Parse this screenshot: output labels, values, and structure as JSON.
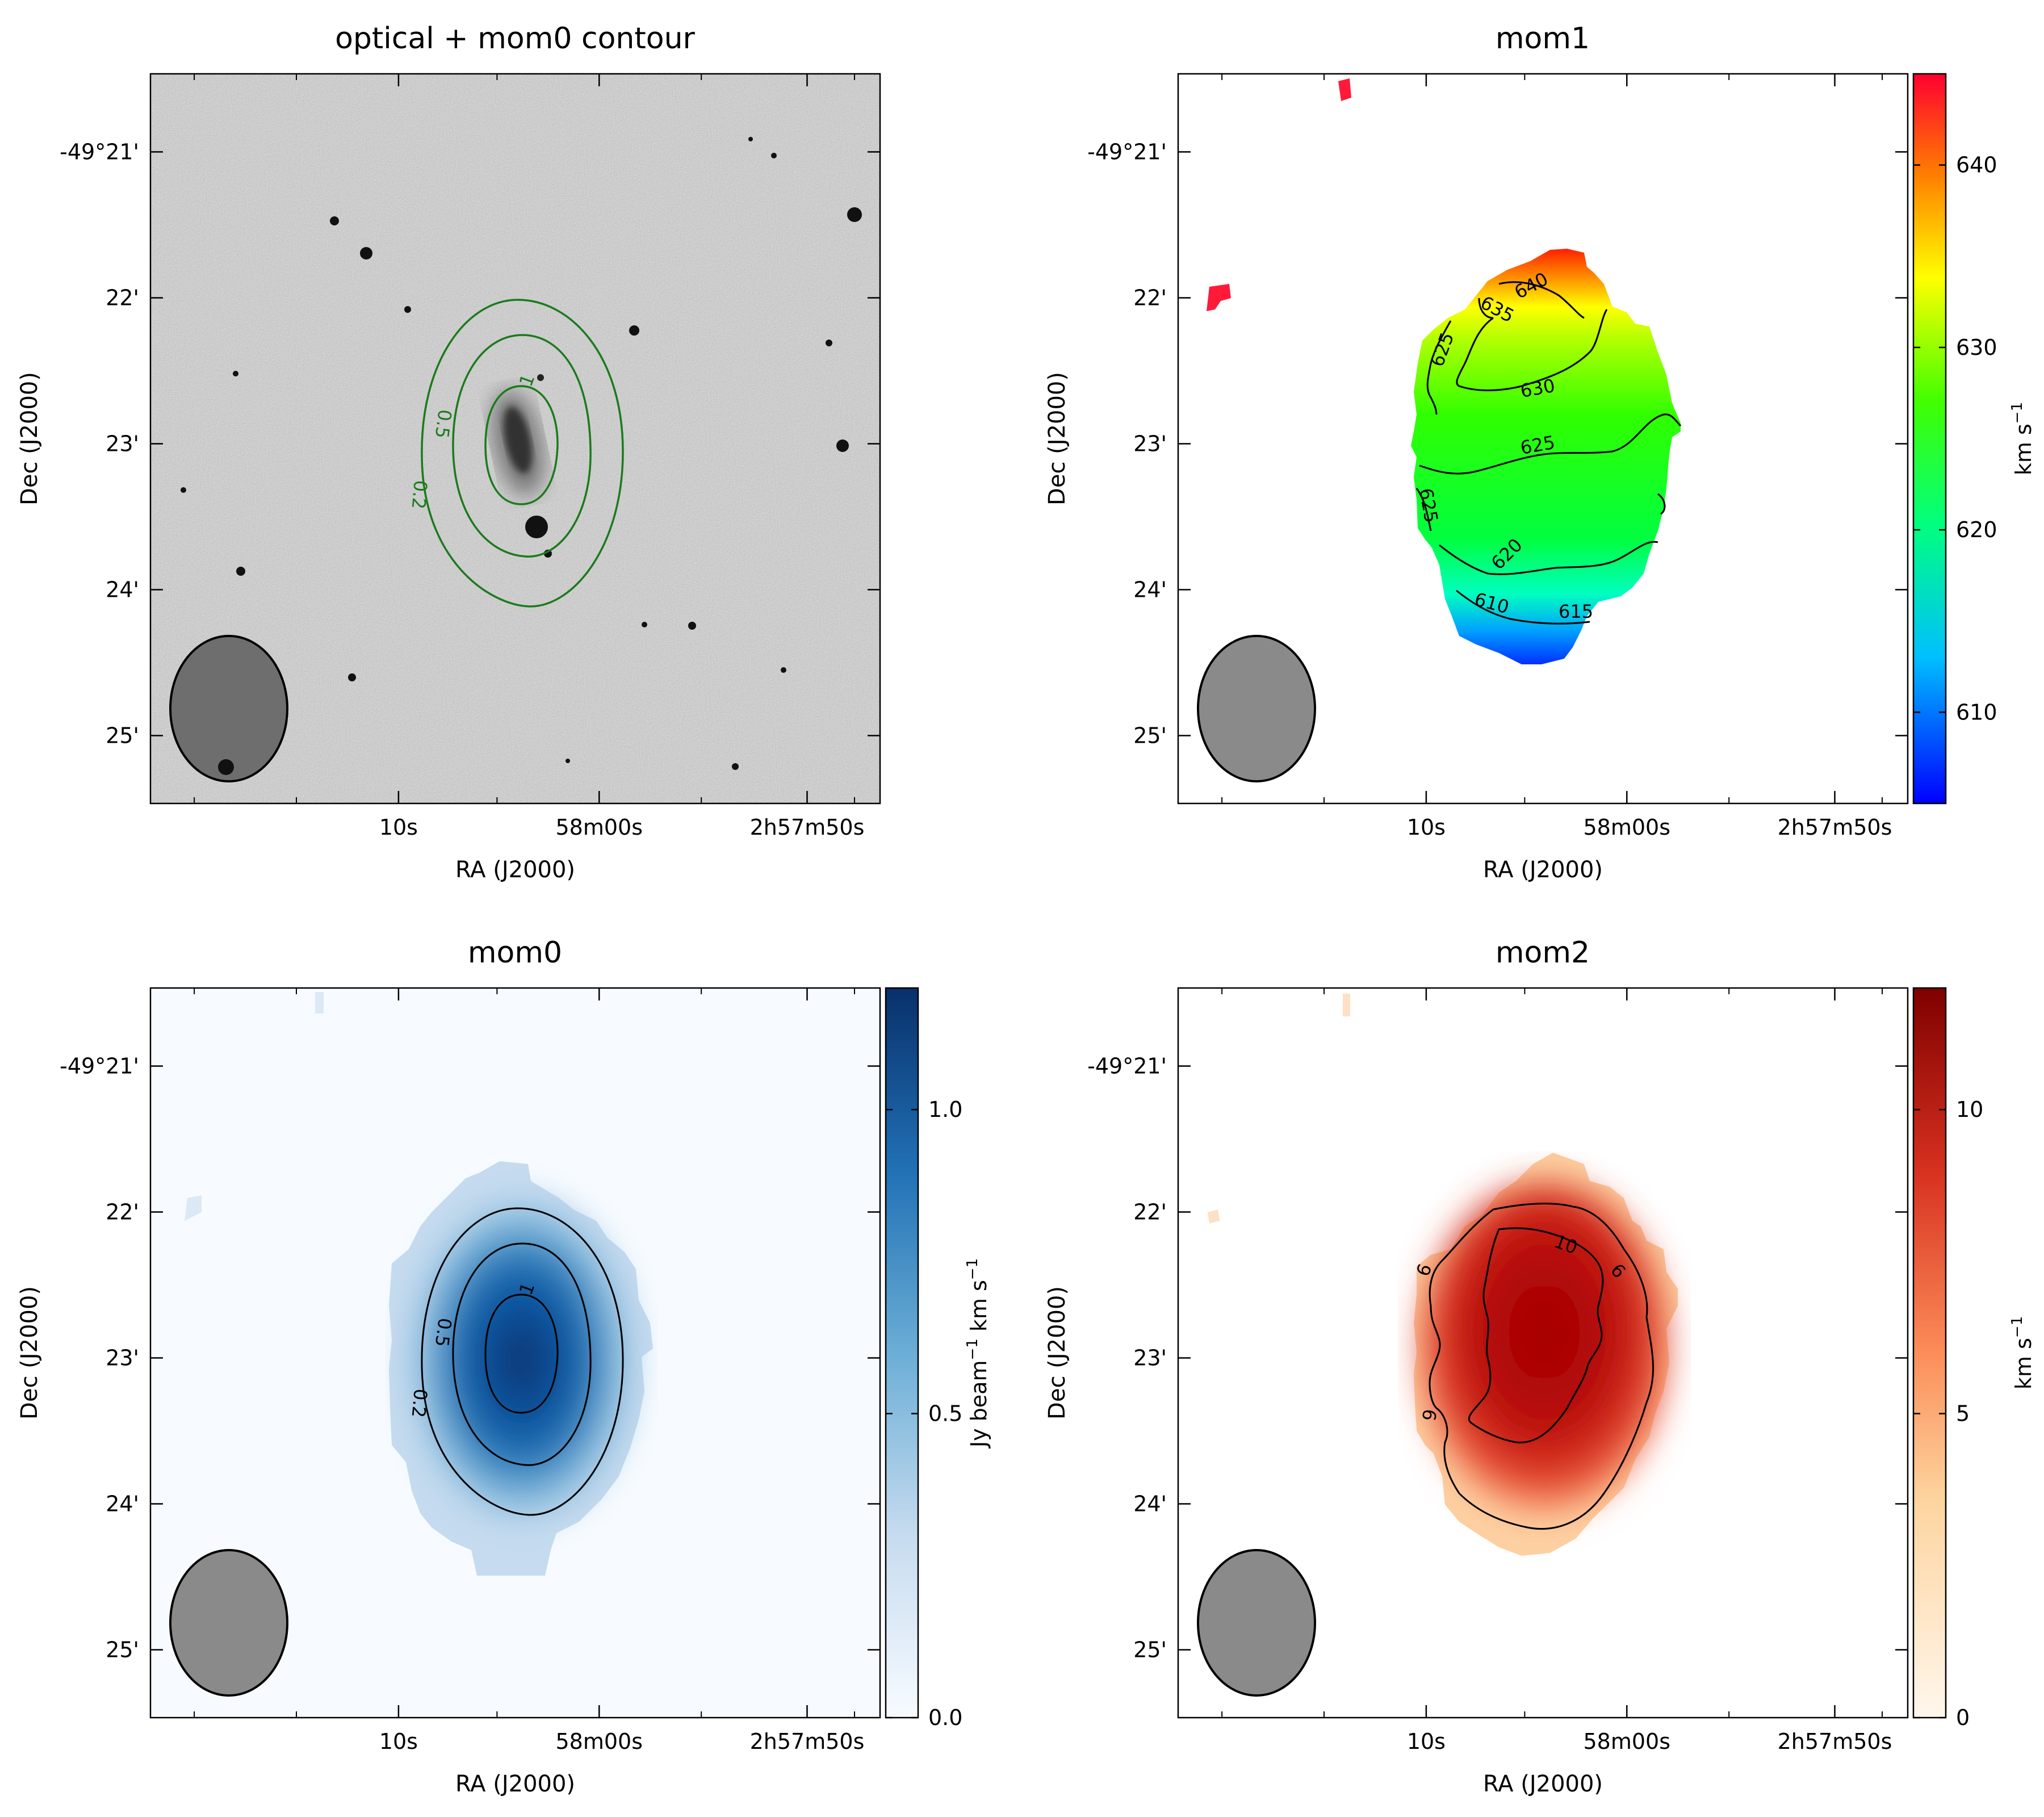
{
  "chart_data": [
    {
      "type": "image",
      "title": "optical + mom0 contour",
      "xlabel": "RA (J2000)",
      "ylabel": "Dec (J2000)",
      "x_ticks": [
        "10s",
        "58m00s",
        "2h57m50s"
      ],
      "y_ticks": [
        "-49°21'",
        "22'",
        "23'",
        "24'",
        "25'"
      ],
      "contour_levels": [
        "0.2",
        "0.5",
        "1"
      ],
      "contour_color": "#1b7a1b",
      "beam_color": "#6e6e6e",
      "colormap": "gray_r"
    },
    {
      "type": "heatmap",
      "title": "mom1",
      "xlabel": "RA (J2000)",
      "ylabel": "Dec (J2000)",
      "x_ticks": [
        "10s",
        "58m00s",
        "2h57m50s"
      ],
      "y_ticks": [
        "-49°21'",
        "22'",
        "23'",
        "24'",
        "25'"
      ],
      "contour_levels": [
        "640",
        "635",
        "630",
        "625",
        "625",
        "625",
        "620",
        "615",
        "610"
      ],
      "colorbar": {
        "label": "km s",
        "label_sup": "−1",
        "ticks": [
          "610",
          "620",
          "630",
          "640"
        ],
        "range": [
          605,
          645
        ],
        "tick_values": [
          610,
          620,
          630,
          640
        ]
      },
      "colormap": "gist_rainbow_r",
      "beam_color": "#8a8a8a"
    },
    {
      "type": "heatmap",
      "title": "mom0",
      "xlabel": "RA (J2000)",
      "ylabel": "Dec (J2000)",
      "x_ticks": [
        "10s",
        "58m00s",
        "2h57m50s"
      ],
      "y_ticks": [
        "-49°21'",
        "22'",
        "23'",
        "24'",
        "25'"
      ],
      "contour_levels": [
        "0.2",
        "0.5",
        "1"
      ],
      "colorbar": {
        "label_a": "Jy beam",
        "label_a_sup": "−1",
        "label_b": "km s",
        "label_b_sup": "−1",
        "ticks": [
          "0.0",
          "0.5",
          "1.0"
        ],
        "range": [
          0,
          1.2
        ],
        "tick_values": [
          0,
          0.5,
          1.0
        ]
      },
      "colormap": "Blues",
      "beam_color": "#8a8a8a"
    },
    {
      "type": "heatmap",
      "title": "mom2",
      "xlabel": "RA (J2000)",
      "ylabel": "Dec (J2000)",
      "x_ticks": [
        "10s",
        "58m00s",
        "2h57m50s"
      ],
      "y_ticks": [
        "-49°21'",
        "22'",
        "23'",
        "24'",
        "25'"
      ],
      "contour_levels": [
        "10",
        "6",
        "6",
        "6"
      ],
      "colorbar": {
        "label": "km s",
        "label_sup": "−1",
        "ticks": [
          "0",
          "5",
          "10"
        ],
        "range": [
          0,
          12
        ],
        "tick_values": [
          0,
          5,
          10
        ]
      },
      "colormap": "OrRd",
      "beam_color": "#8a8a8a"
    }
  ]
}
